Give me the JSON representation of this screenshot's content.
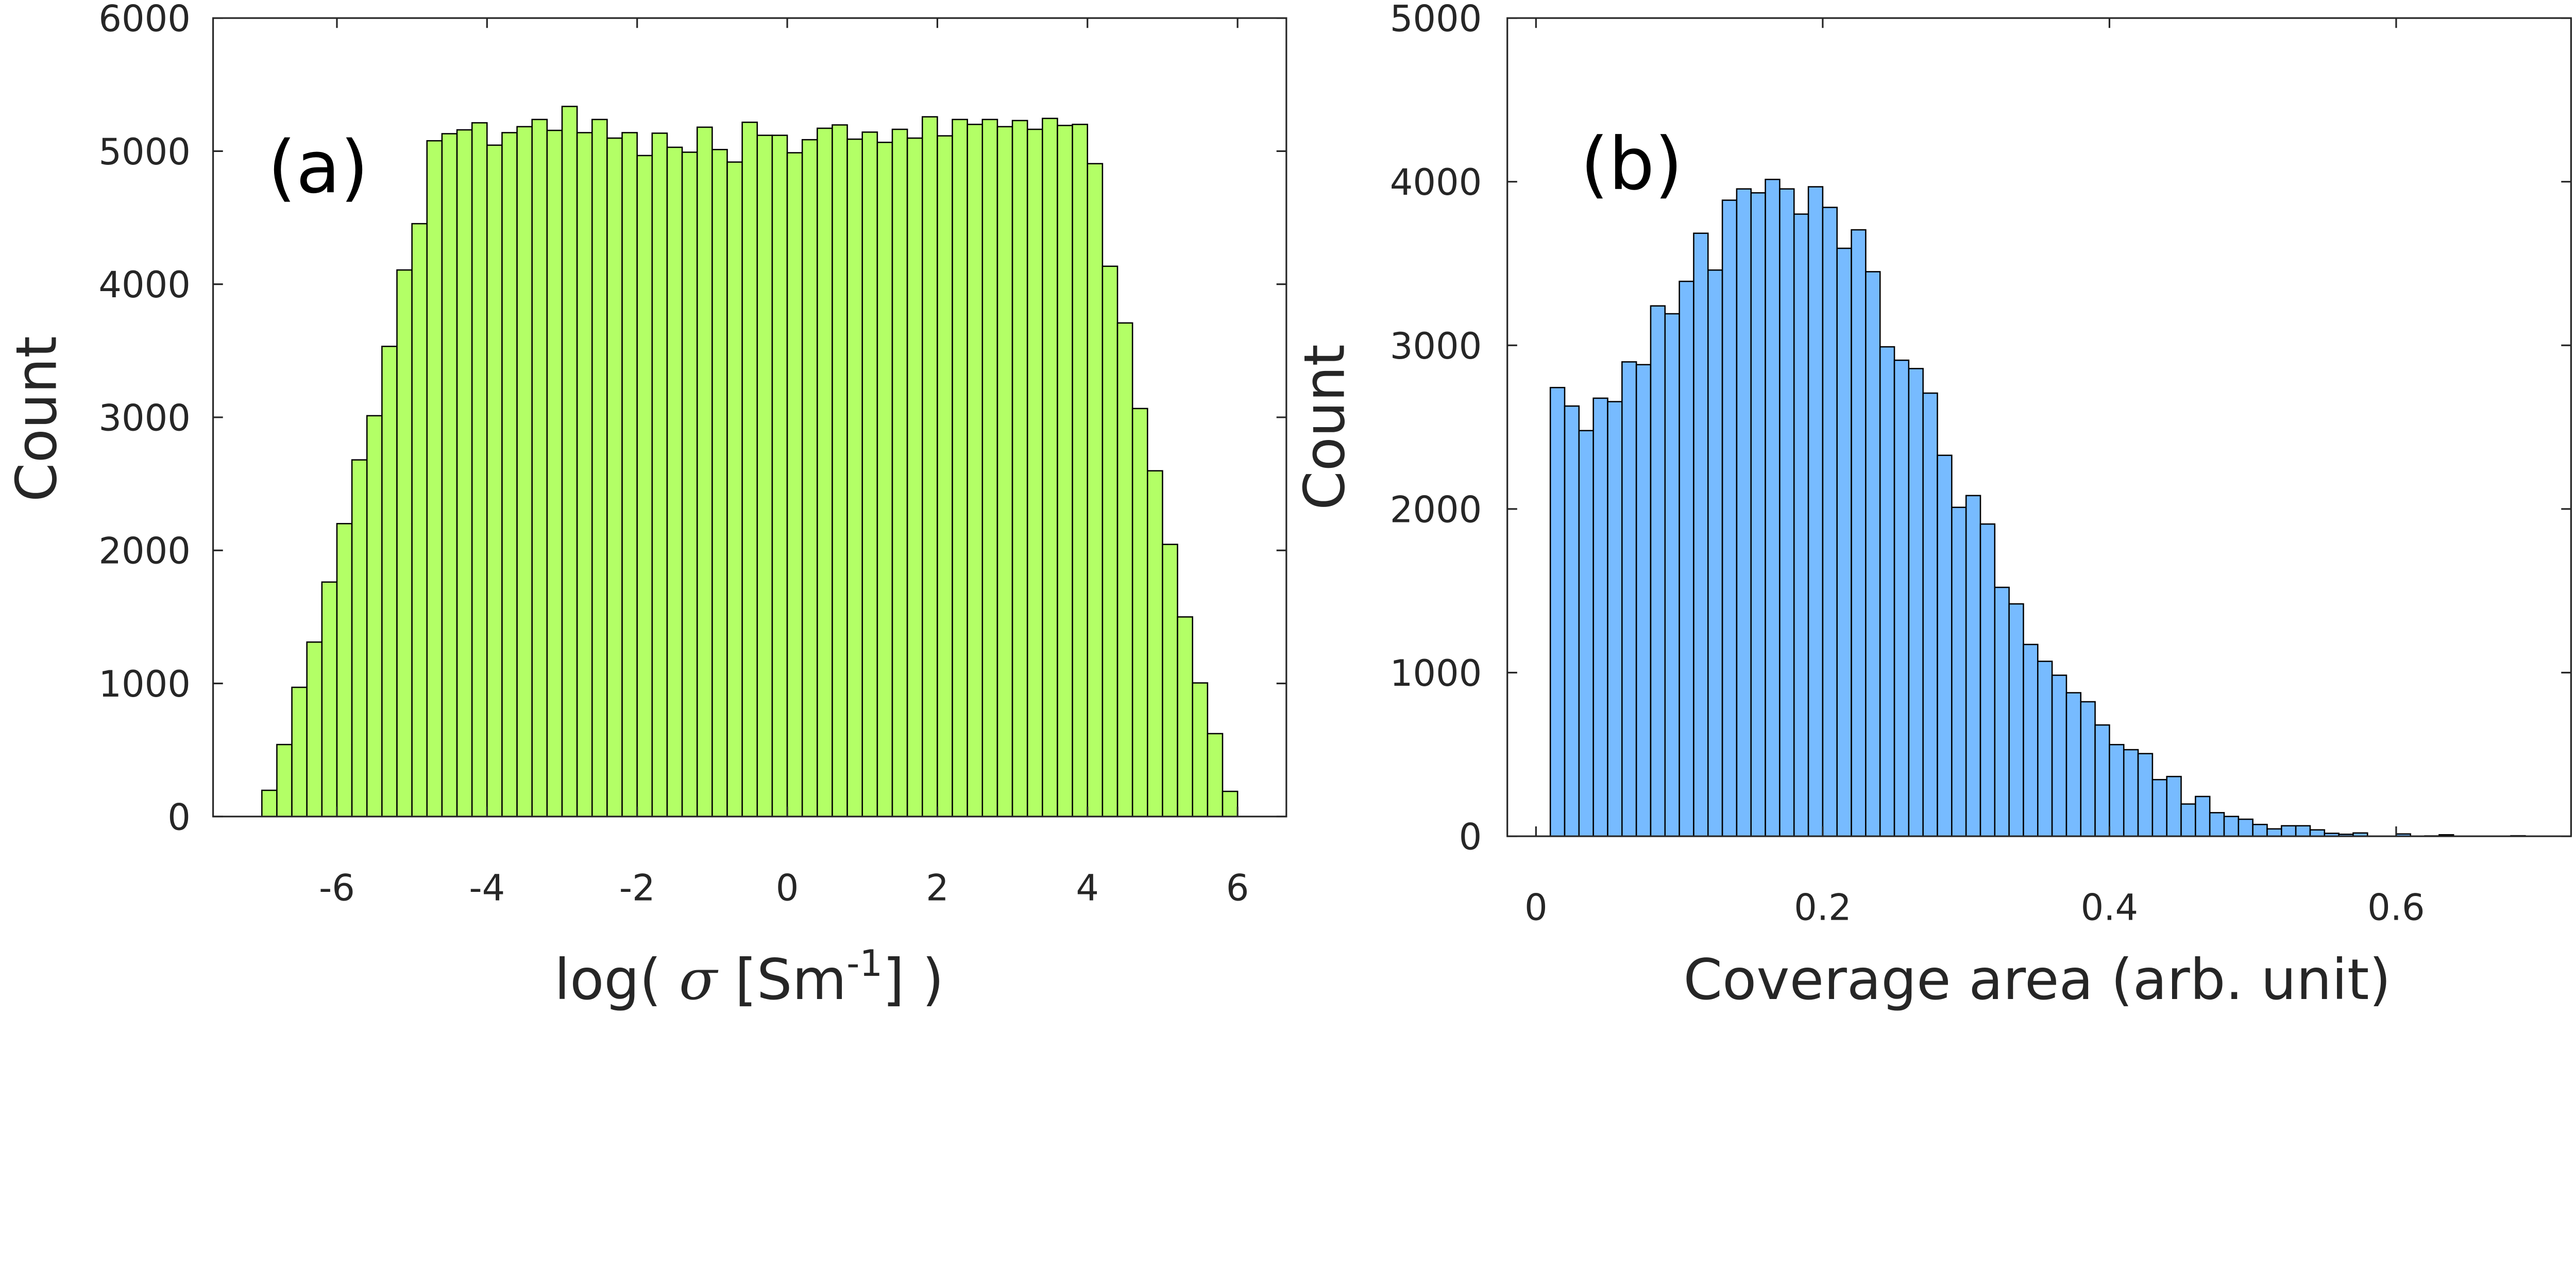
{
  "chart_data": [
    {
      "type": "bar",
      "panel_label": "(a)",
      "title": "",
      "xlabel_parts": {
        "pre": "log( ",
        "symbol": "σ",
        "mid": " [Sm",
        "sup": "-1",
        "post": "] )"
      },
      "ylabel": "Count",
      "xlim": [
        -7.65,
        6.65
      ],
      "ylim": [
        0,
        6000
      ],
      "xticks": [
        -6,
        -4,
        -2,
        0,
        2,
        4,
        6
      ],
      "xtick_labels": [
        "-6",
        "-4",
        "-2",
        "0",
        "2",
        "4",
        "6"
      ],
      "yticks": [
        0,
        1000,
        2000,
        3000,
        4000,
        5000,
        6000
      ],
      "ytick_labels": [
        "0",
        "1000",
        "2000",
        "3000",
        "4000",
        "5000",
        "6000"
      ],
      "bin_start": -7.0,
      "bin_width": 0.2,
      "values": [
        197,
        541,
        971,
        1311,
        1762,
        2201,
        2680,
        3012,
        3533,
        4107,
        4455,
        5078,
        5131,
        5160,
        5213,
        5045,
        5139,
        5184,
        5238,
        5156,
        5336,
        5139,
        5238,
        5098,
        5139,
        4967,
        5135,
        5029,
        4992,
        5180,
        5012,
        4918,
        5217,
        5119,
        5119,
        4988,
        5086,
        5172,
        5197,
        5090,
        5143,
        5066,
        5164,
        5098,
        5258,
        5115,
        5238,
        5201,
        5238,
        5184,
        5230,
        5164,
        5246,
        5193,
        5201,
        4906,
        4135,
        3709,
        3066,
        2598,
        2045,
        1500,
        1004,
        623,
        189
      ],
      "color": "#b3ff66",
      "edge_color": "#000000",
      "grid": false
    },
    {
      "type": "bar",
      "panel_label": "(b)",
      "title": "",
      "xlabel": "Coverage area (arb. unit)",
      "ylabel": "Count",
      "xlim": [
        -0.02,
        0.722
      ],
      "ylim": [
        0,
        5000
      ],
      "xticks": [
        0,
        0.2,
        0.4,
        0.6
      ],
      "xtick_labels": [
        "0",
        "0.2",
        "0.4",
        "0.6"
      ],
      "yticks": [
        0,
        1000,
        2000,
        3000,
        4000,
        5000
      ],
      "ytick_labels": [
        "0",
        "1000",
        "2000",
        "3000",
        "4000",
        "5000"
      ],
      "bin_start": 0.01,
      "bin_width": 0.01,
      "values": [
        2742,
        2629,
        2479,
        2677,
        2656,
        2899,
        2882,
        3241,
        3193,
        3391,
        3685,
        3460,
        3887,
        3956,
        3932,
        4014,
        3956,
        3802,
        3969,
        3843,
        3593,
        3706,
        3450,
        2991,
        2909,
        2858,
        2708,
        2328,
        2010,
        2082,
        1908,
        1521,
        1420,
        1172,
        1069,
        984,
        877,
        822,
        680,
        560,
        529,
        505,
        346,
        365,
        197,
        243,
        144,
        121,
        104,
        72,
        45,
        64,
        64,
        39,
        18,
        12,
        20,
        0,
        0,
        14,
        0,
        2,
        9,
        0,
        0,
        0,
        0,
        3
      ],
      "color": "#77bbff",
      "edge_color": "#000000",
      "grid": false
    }
  ]
}
